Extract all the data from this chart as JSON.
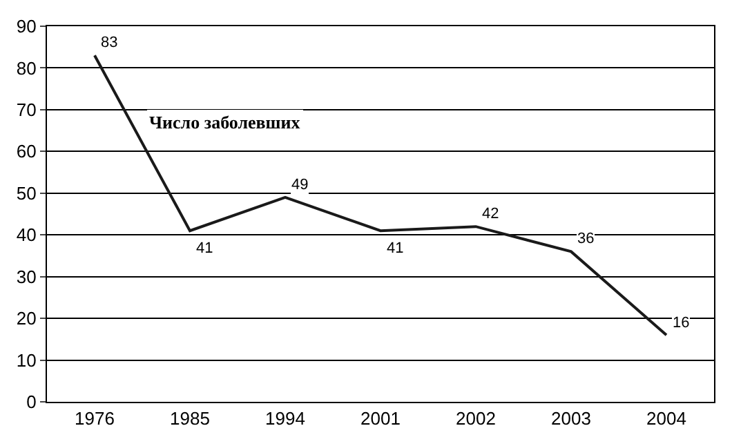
{
  "chart_data": {
    "type": "line",
    "categories": [
      "1976",
      "1985",
      "1994",
      "2001",
      "2002",
      "2003",
      "2004"
    ],
    "series": [
      {
        "color": "#1a1a1a",
        "values": [
          83,
          41,
          49,
          41,
          42,
          36,
          16
        ]
      }
    ],
    "ylim": [
      0,
      90
    ],
    "yticks": [
      0,
      10,
      20,
      30,
      40,
      50,
      60,
      70,
      80,
      90
    ],
    "grid": "y",
    "marker": "none",
    "line_style": "solid",
    "data_labels": true,
    "annotations": [
      "Число заболевших"
    ]
  }
}
